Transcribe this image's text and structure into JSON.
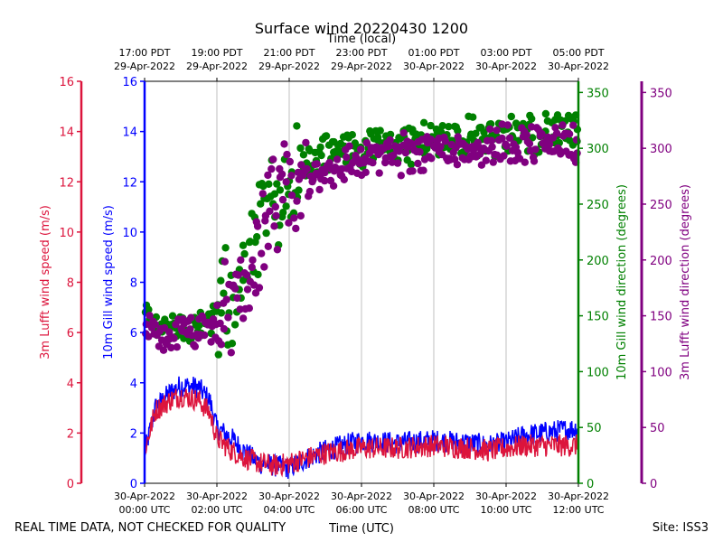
{
  "chart_data": {
    "type": "line+scatter",
    "title": "Surface wind 20220430 1200",
    "top_axis_label": "Time (local)",
    "x_axis_label": "Time (UTC)",
    "footer_left": "REAL TIME DATA, NOT CHECKED FOR QUALITY",
    "footer_right": "Site: ISS3",
    "x_hours_range": [
      0,
      12
    ],
    "x_ticks_utc": [
      {
        "h": 0,
        "line1": "30-Apr-2022",
        "line2": "00:00 UTC"
      },
      {
        "h": 2,
        "line1": "30-Apr-2022",
        "line2": "02:00 UTC"
      },
      {
        "h": 4,
        "line1": "30-Apr-2022",
        "line2": "04:00 UTC"
      },
      {
        "h": 6,
        "line1": "30-Apr-2022",
        "line2": "06:00 UTC"
      },
      {
        "h": 8,
        "line1": "30-Apr-2022",
        "line2": "08:00 UTC"
      },
      {
        "h": 10,
        "line1": "30-Apr-2022",
        "line2": "10:00 UTC"
      },
      {
        "h": 12,
        "line1": "30-Apr-2022",
        "line2": "12:00 UTC"
      }
    ],
    "x_ticks_local": [
      {
        "h": 0,
        "line1": "17:00 PDT",
        "line2": "29-Apr-2022"
      },
      {
        "h": 2,
        "line1": "19:00 PDT",
        "line2": "29-Apr-2022"
      },
      {
        "h": 4,
        "line1": "21:00 PDT",
        "line2": "29-Apr-2022"
      },
      {
        "h": 6,
        "line1": "23:00 PDT",
        "line2": "29-Apr-2022"
      },
      {
        "h": 8,
        "line1": "01:00 PDT",
        "line2": "30-Apr-2022"
      },
      {
        "h": 10,
        "line1": "03:00 PDT",
        "line2": "30-Apr-2022"
      },
      {
        "h": 12,
        "line1": "05:00 PDT",
        "line2": "30-Apr-2022"
      }
    ],
    "axes": {
      "lufft_speed": {
        "label": "3m Lufft wind speed (m/s)",
        "range": [
          0,
          16
        ],
        "ticks": [
          0,
          2,
          4,
          6,
          8,
          10,
          12,
          14,
          16
        ],
        "color": "#dc143c"
      },
      "gill_speed": {
        "label": "10m Gill wind speed (m/s)",
        "range": [
          0,
          16
        ],
        "ticks": [
          0,
          2,
          4,
          6,
          8,
          10,
          12,
          14,
          16
        ],
        "color": "#0000ff"
      },
      "gill_dir": {
        "label": "10m Gill wind direction (degrees)",
        "range": [
          0,
          360
        ],
        "ticks": [
          0,
          50,
          100,
          150,
          200,
          250,
          300,
          350
        ],
        "color": "#008000"
      },
      "lufft_dir": {
        "label": "3m Lufft wind direction (degrees)",
        "range": [
          0,
          360
        ],
        "ticks": [
          0,
          50,
          100,
          150,
          200,
          250,
          300,
          350
        ],
        "color": "#800080"
      }
    },
    "series": [
      {
        "name": "10m Gill wind speed",
        "kind": "line",
        "axis": "gill_speed",
        "color": "#0000ff",
        "anchors_hours": [
          0,
          0.3,
          0.7,
          1.0,
          1.5,
          1.8,
          2.0,
          2.4,
          2.8,
          3.2,
          3.6,
          4.0,
          4.5,
          5.0,
          5.5,
          6.0,
          7.0,
          8.0,
          9.0,
          9.5,
          10.0,
          10.5,
          11.0,
          11.5,
          12.0
        ],
        "anchors_values": [
          1.2,
          3.0,
          3.6,
          3.9,
          3.8,
          3.3,
          2.2,
          1.8,
          1.2,
          0.8,
          0.7,
          0.6,
          1.0,
          1.3,
          1.5,
          1.7,
          1.6,
          1.7,
          1.6,
          1.5,
          1.6,
          1.9,
          2.0,
          2.1,
          2.2
        ]
      },
      {
        "name": "3m Lufft wind speed",
        "kind": "line",
        "axis": "lufft_speed",
        "color": "#dc143c",
        "anchors_hours": [
          0,
          0.3,
          0.7,
          1.0,
          1.5,
          1.8,
          2.0,
          2.4,
          2.8,
          3.2,
          3.6,
          4.0,
          4.5,
          5.0,
          5.5,
          6.0,
          7.0,
          8.0,
          9.0,
          9.5,
          10.0,
          10.5,
          11.0,
          11.5,
          12.0
        ],
        "anchors_values": [
          1.3,
          2.9,
          3.3,
          3.5,
          3.3,
          2.8,
          1.8,
          1.3,
          1.0,
          0.8,
          0.7,
          0.8,
          1.0,
          1.2,
          1.3,
          1.4,
          1.4,
          1.5,
          1.4,
          1.3,
          1.4,
          1.5,
          1.5,
          1.5,
          1.5
        ]
      },
      {
        "name": "10m Gill wind direction",
        "kind": "scatter",
        "axis": "gill_dir",
        "color": "#008000",
        "anchors_hours": [
          0,
          0.3,
          1.0,
          1.8,
          2.2,
          2.8,
          3.2,
          3.6,
          4.0,
          4.5,
          5.0,
          6.0,
          7.0,
          8.0,
          9.0,
          10.0,
          11.0,
          12.0
        ],
        "anchors_values": [
          150,
          140,
          140,
          140,
          160,
          190,
          230,
          260,
          270,
          280,
          295,
          300,
          305,
          308,
          310,
          312,
          315,
          315
        ]
      },
      {
        "name": "3m Lufft wind direction",
        "kind": "scatter",
        "axis": "lufft_dir",
        "color": "#800080",
        "anchors_hours": [
          0,
          0.3,
          1.0,
          1.8,
          2.2,
          2.8,
          3.2,
          3.6,
          4.0,
          4.5,
          5.0,
          6.0,
          7.0,
          8.0,
          9.0,
          10.0,
          11.0,
          12.0
        ],
        "anchors_values": [
          140,
          130,
          135,
          135,
          150,
          180,
          215,
          245,
          260,
          270,
          280,
          290,
          295,
          300,
          300,
          305,
          305,
          305
        ]
      }
    ]
  }
}
